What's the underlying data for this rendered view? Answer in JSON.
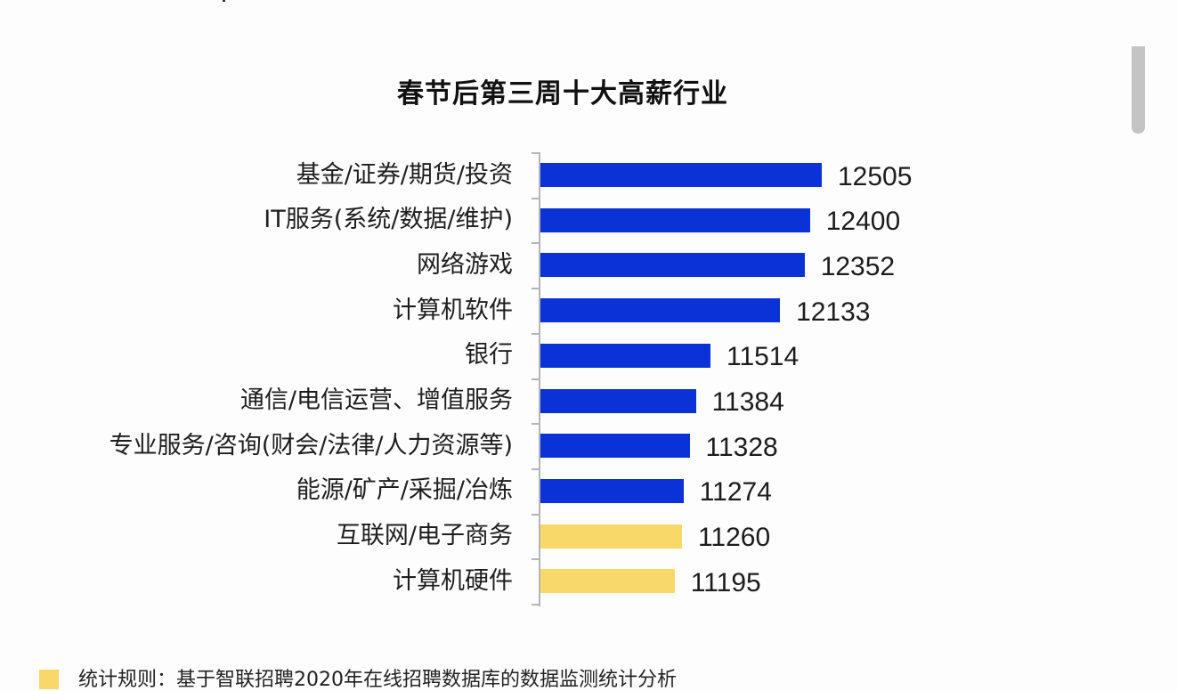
{
  "title": "春节后第三周十大高薪行业",
  "footnote": {
    "text": "统计规则：基于智联招聘2020年在线招聘数据库的数据监测统计分析"
  },
  "colors": {
    "highlight_bar": "#0a32d6",
    "normal_bar": "#f8d868",
    "axis": "#b5b5b5"
  },
  "chart_data": {
    "type": "bar",
    "orientation": "horizontal",
    "title": "春节后第三周十大高薪行业",
    "xlabel": "",
    "ylabel": "",
    "xlim": [
      10000,
      12600
    ],
    "grid": false,
    "legend": null,
    "categories": [
      "基金/证券/期货/投资",
      "IT服务(系统/数据/维护)",
      "网络游戏",
      "计算机软件",
      "银行",
      "通信/电信运营、增值服务",
      "专业服务/咨询(财会/法律/人力资源等)",
      "能源/矿产/采掘/冶炼",
      "互联网/电子商务",
      "计算机硬件"
    ],
    "values": [
      12505,
      12400,
      12352,
      12133,
      11514,
      11384,
      11328,
      11274,
      11260,
      11195
    ],
    "bar_colors": [
      "#0a32d6",
      "#0a32d6",
      "#0a32d6",
      "#0a32d6",
      "#0a32d6",
      "#0a32d6",
      "#0a32d6",
      "#0a32d6",
      "#f8d868",
      "#f8d868"
    ],
    "data_labels": [
      "12505",
      "12400",
      "12352",
      "12133",
      "11514",
      "11384",
      "11328",
      "11274",
      "11260",
      "11195"
    ]
  }
}
